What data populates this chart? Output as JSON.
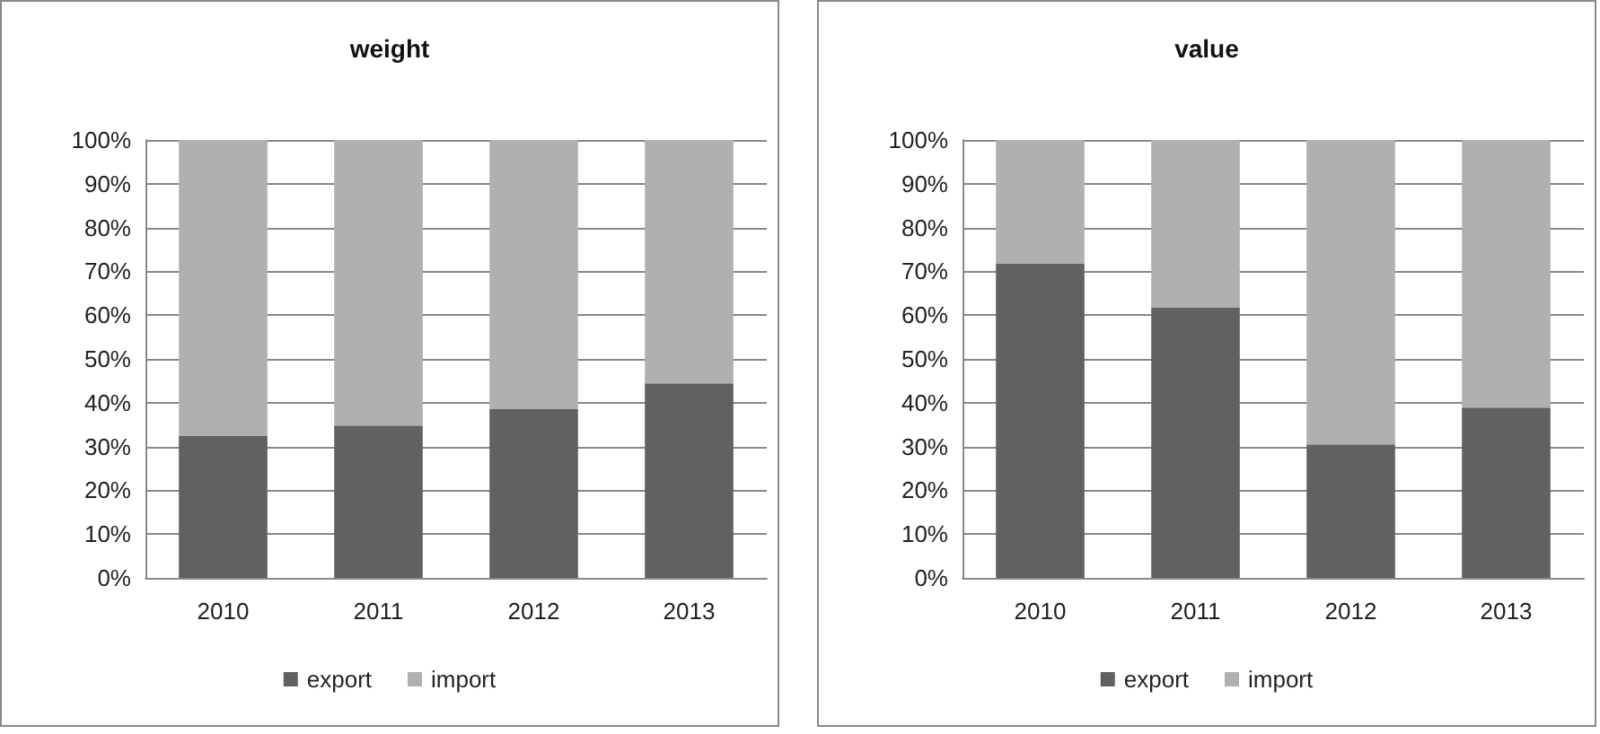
{
  "chart_data": [
    {
      "type": "bar",
      "title": "weight",
      "categories": [
        "2010",
        "2011",
        "2012",
        "2013"
      ],
      "stacked": true,
      "series": [
        {
          "name": "export",
          "color": "#616161",
          "values": [
            32.5,
            34.8,
            38.5,
            44.4
          ]
        },
        {
          "name": "import",
          "color": "#b0b0b0",
          "values": [
            67.5,
            65.2,
            61.5,
            55.6
          ]
        }
      ],
      "ylim": [
        0,
        100
      ],
      "yticks": [
        {
          "value": 0,
          "label": "0%"
        },
        {
          "value": 10,
          "label": "10%"
        },
        {
          "value": 20,
          "label": "20%"
        },
        {
          "value": 30,
          "label": "30%"
        },
        {
          "value": 40,
          "label": "40%"
        },
        {
          "value": 50,
          "label": "50%"
        },
        {
          "value": 60,
          "label": "60%"
        },
        {
          "value": 70,
          "label": "70%"
        },
        {
          "value": 80,
          "label": "80%"
        },
        {
          "value": 90,
          "label": "90%"
        },
        {
          "value": 100,
          "label": "100%"
        }
      ],
      "grid": "y",
      "legend": "bottom"
    },
    {
      "type": "bar",
      "title": "value",
      "categories": [
        "2010",
        "2011",
        "2012",
        "2013"
      ],
      "stacked": true,
      "series": [
        {
          "name": "export",
          "color": "#616161",
          "values": [
            71.7,
            61.8,
            30.5,
            38.9
          ]
        },
        {
          "name": "import",
          "color": "#b0b0b0",
          "values": [
            28.3,
            38.2,
            69.5,
            61.1
          ]
        }
      ],
      "ylim": [
        0,
        100
      ],
      "yticks": [
        {
          "value": 0,
          "label": "0%"
        },
        {
          "value": 10,
          "label": "10%"
        },
        {
          "value": 20,
          "label": "20%"
        },
        {
          "value": 30,
          "label": "30%"
        },
        {
          "value": 40,
          "label": "40%"
        },
        {
          "value": 50,
          "label": "50%"
        },
        {
          "value": 60,
          "label": "60%"
        },
        {
          "value": 70,
          "label": "70%"
        },
        {
          "value": 80,
          "label": "80%"
        },
        {
          "value": 90,
          "label": "90%"
        },
        {
          "value": 100,
          "label": "100%"
        }
      ],
      "grid": "y",
      "legend": "bottom"
    }
  ]
}
